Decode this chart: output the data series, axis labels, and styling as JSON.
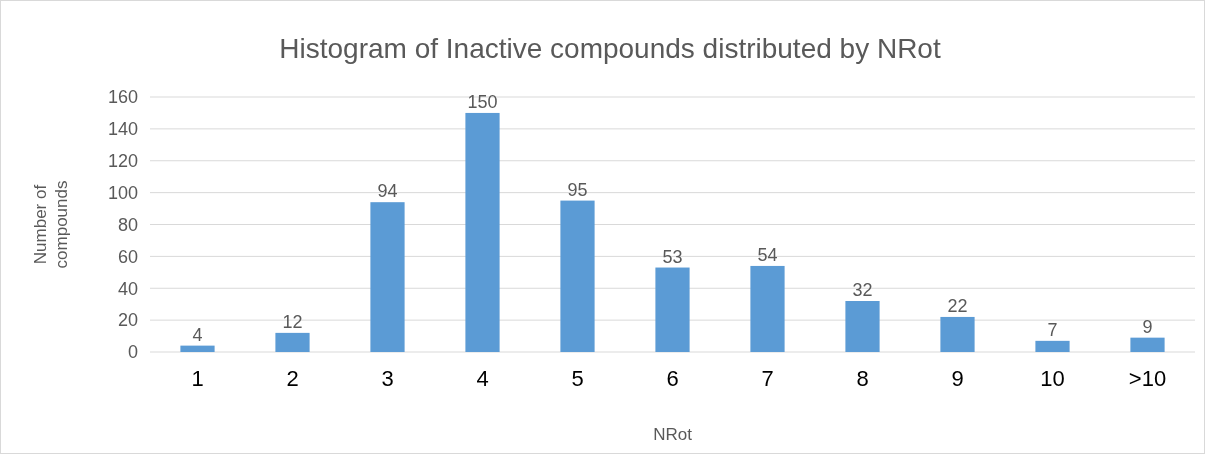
{
  "chart_data": {
    "type": "bar",
    "title": "Histogram of Inactive compounds distributed by NRot",
    "xlabel": "NRot",
    "ylabel": "Number of compounds",
    "categories": [
      "1",
      "2",
      "3",
      "4",
      "5",
      "6",
      "7",
      "8",
      "9",
      "10",
      ">10"
    ],
    "values": [
      4,
      12,
      94,
      150,
      95,
      53,
      54,
      32,
      22,
      7,
      9
    ],
    "color": "#5b9bd5",
    "ylim": [
      0,
      160
    ],
    "yticks": [
      0,
      20,
      40,
      60,
      80,
      100,
      120,
      140,
      160
    ],
    "grid": "y",
    "data_labels": true
  }
}
